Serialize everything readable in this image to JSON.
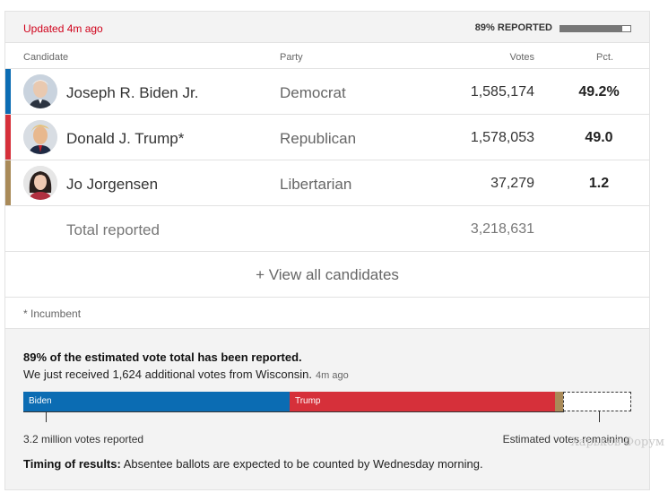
{
  "status": {
    "updated": "Updated 4m ago",
    "reported_label": "89% REPORTED",
    "reported_fraction": 0.89
  },
  "table": {
    "headers": {
      "candidate": "Candidate",
      "party": "Party",
      "votes": "Votes",
      "pct": "Pct."
    },
    "rows": [
      {
        "name": "Joseph R. Biden Jr.",
        "party": "Democrat",
        "votes": "1,585,174",
        "pct": "49.2%",
        "color": "#0b6cb3"
      },
      {
        "name": "Donald J. Trump*",
        "party": "Republican",
        "votes": "1,578,053",
        "pct": "49.0",
        "color": "#d6303a"
      },
      {
        "name": "Jo Jorgensen",
        "party": "Libertarian",
        "votes": "37,279",
        "pct": "1.2",
        "color": "#a98a58"
      }
    ],
    "total": {
      "label": "Total reported",
      "votes": "3,218,631"
    },
    "view_all": "+ View all candidates",
    "footnote": "* Incumbent"
  },
  "summary": {
    "headline": "89% of the estimated vote total has been reported.",
    "subline": "We just received 1,624 additional votes from Wisconsin.",
    "subline_ago": "4m ago",
    "bar": {
      "segments": [
        {
          "label": "Biden",
          "share": 0.438,
          "color": "#0b6cb3"
        },
        {
          "label": "Trump",
          "share": 0.437,
          "color": "#d6303a"
        },
        {
          "label": "",
          "share": 0.013,
          "color": "#a98a58"
        }
      ],
      "remaining_share": 0.112
    },
    "reported_note": "3.2 million votes reported",
    "remaining_note": "Estimated votes remaining",
    "timing_label": "Timing of results:",
    "timing_text": " Absentee ballots are expected to be counted by Wednesday morning."
  },
  "watermark": "Харьков Форум"
}
